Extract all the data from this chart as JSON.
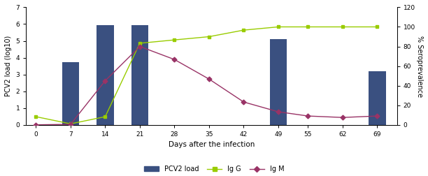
{
  "bar_days": [
    7,
    14,
    21,
    49,
    69
  ],
  "bar_values": [
    3.75,
    5.95,
    5.95,
    5.1,
    3.2
  ],
  "bar_color": "#3A5080",
  "igg_days": [
    0,
    7,
    14,
    21,
    28,
    35,
    42,
    49,
    55,
    62,
    69
  ],
  "igg_values": [
    8.3,
    1.0,
    8.3,
    83.3,
    86.7,
    90.0,
    96.7,
    100.0,
    100.0,
    100.0,
    100.0
  ],
  "igm_days": [
    0,
    7,
    14,
    21,
    28,
    35,
    42,
    49,
    55,
    62,
    69
  ],
  "igm_values": [
    0.0,
    0.5,
    45.0,
    80.0,
    66.7,
    46.7,
    23.3,
    13.3,
    9.0,
    7.5,
    9.0
  ],
  "igg_color": "#99CC00",
  "igm_color": "#993366",
  "y_left_label": "PCV2 load (log10)",
  "y_right_label": "% Seroprevalence",
  "x_label": "Days after the infection",
  "y_left_min": 0,
  "y_left_max": 7,
  "y_right_min": 0,
  "y_right_max": 120,
  "y_left_ticks": [
    0,
    1,
    2,
    3,
    4,
    5,
    6,
    7
  ],
  "y_right_ticks": [
    0,
    20,
    40,
    60,
    80,
    100,
    120
  ],
  "x_ticks": [
    0,
    7,
    14,
    21,
    28,
    35,
    42,
    49,
    55,
    62,
    69
  ],
  "x_min": -2,
  "x_max": 73,
  "bar_width": 3.5,
  "legend_labels": [
    "PCV2 load",
    "Ig G",
    "Ig M"
  ],
  "fig_width": 6.12,
  "fig_height": 2.52,
  "dpi": 100
}
